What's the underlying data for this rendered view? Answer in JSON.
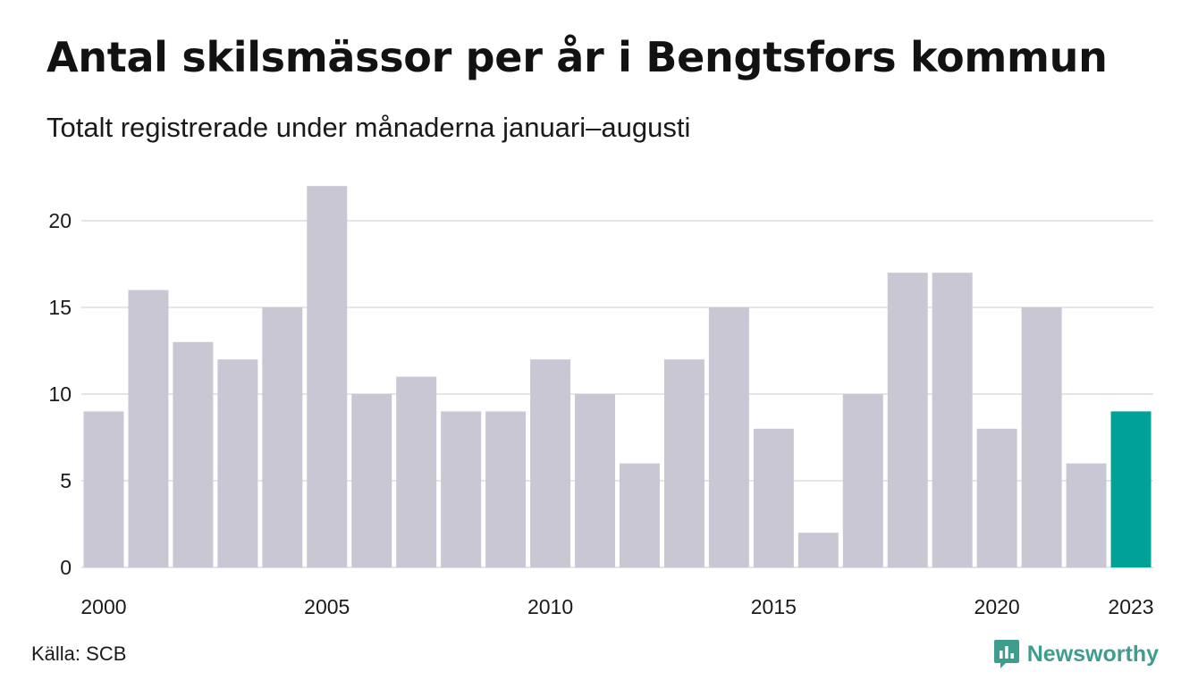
{
  "title": "Antal skilsmässor per år i Bengtsfors kommun",
  "subtitle": "Totalt registrerade under månaderna januari–augusti",
  "source": "Källa: SCB",
  "brand": {
    "name": "Newsworthy",
    "icon": "newsworthy-logo-icon",
    "color": "#3f9d8e"
  },
  "colors": {
    "bar": "#c8c7d3",
    "highlight": "#00a297",
    "grid": "#e4e4ea"
  },
  "chart_data": {
    "type": "bar",
    "title": "Antal skilsmässor per år i Bengtsfors kommun",
    "subtitle": "Totalt registrerade under månaderna januari–augusti",
    "xlabel": "",
    "ylabel": "",
    "categories": [
      "2000",
      "2001",
      "2002",
      "2003",
      "2004",
      "2005",
      "2006",
      "2007",
      "2008",
      "2009",
      "2010",
      "2011",
      "2012",
      "2013",
      "2014",
      "2015",
      "2016",
      "2017",
      "2018",
      "2019",
      "2020",
      "2021",
      "2022",
      "2023"
    ],
    "values": [
      9,
      16,
      13,
      12,
      15,
      22,
      10,
      11,
      9,
      9,
      12,
      10,
      6,
      12,
      15,
      8,
      2,
      10,
      17,
      17,
      8,
      15,
      6,
      9
    ],
    "highlight_category": "2023",
    "x_tick_labels": [
      "2000",
      "2005",
      "2010",
      "2015",
      "2020",
      "2023"
    ],
    "y_ticks": [
      0,
      5,
      10,
      15,
      20
    ],
    "ylim": [
      0,
      22
    ],
    "grid": true,
    "legend": "none"
  }
}
